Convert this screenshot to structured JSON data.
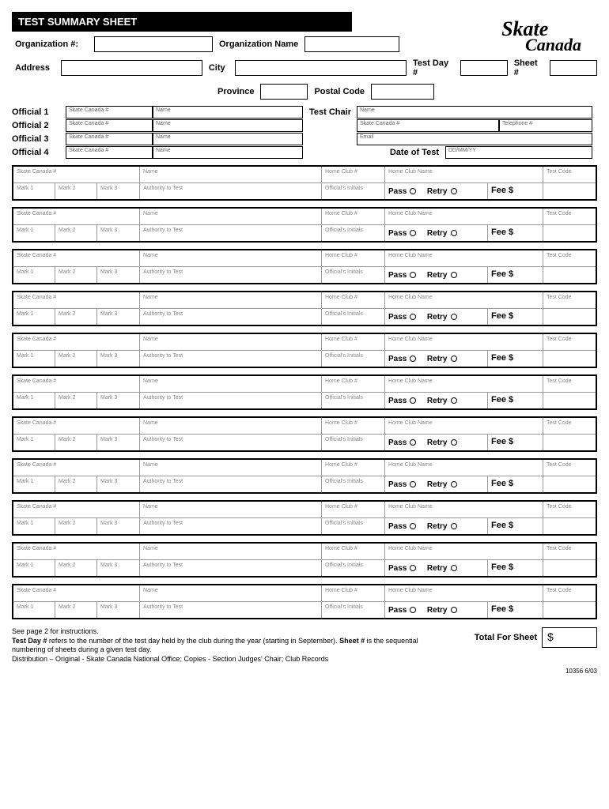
{
  "title": "TEST SUMMARY SHEET",
  "logo": {
    "line1": "Skate",
    "line2": "Canada"
  },
  "fields": {
    "org_num": "Organization #:",
    "org_name": "Organization Name",
    "address": "Address",
    "city": "City",
    "test_day": "Test Day #",
    "sheet": "Sheet #",
    "province": "Province",
    "postal": "Postal Code",
    "test_chair": "Test Chair",
    "date_of_test": "Date of Test"
  },
  "officials": [
    {
      "label": "Official 1",
      "sc": "Skate Canada #",
      "name": "Name"
    },
    {
      "label": "Official 2",
      "sc": "Skate Canada #",
      "name": "Name"
    },
    {
      "label": "Official 3",
      "sc": "Skate Canada #",
      "name": "Name"
    },
    {
      "label": "Official 4",
      "sc": "Skate Canada #",
      "name": "Name"
    }
  ],
  "chair_fields": {
    "name": "Name",
    "sc": "Skate Canada #",
    "tel": "Telephone #",
    "email": "Email",
    "date_hint": "DD/MM/YY"
  },
  "entry": {
    "sc": "Skate Canada #",
    "name": "Name",
    "home_club_num": "Home Club #",
    "home_club_name": "Home Club Name",
    "test_code": "Test Code",
    "mark1": "Mark 1",
    "mark2": "Mark 2",
    "mark3": "Mark 3",
    "authority": "Authority to Test",
    "initials": "Official's Initials",
    "pass": "Pass",
    "retry": "Retry",
    "fee": "Fee $"
  },
  "entry_count": 11,
  "footer": {
    "line1": "See page 2 for instructions.",
    "line2a": "Test Day #",
    "line2b": " refers to the number of the test day held by the club during the year (starting in September). ",
    "line2c": "Sheet #",
    "line2d": " is the sequential numbering of sheets during a given test day.",
    "line3": "Distribution – Original - Skate Canada National Office; Copies - Section Judges' Chair; Club Records",
    "total_label": "Total For Sheet",
    "total_symbol": "$",
    "form_id": "10356 6/03"
  }
}
